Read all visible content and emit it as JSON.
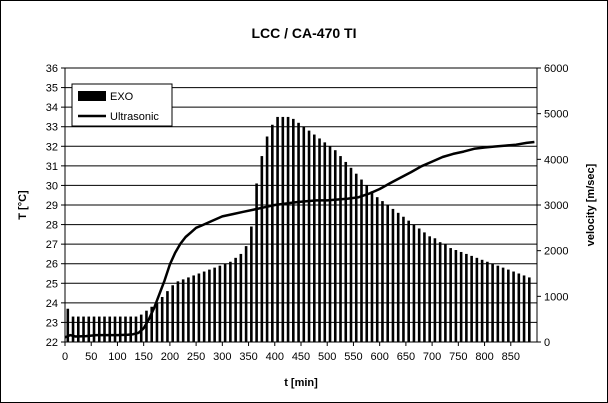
{
  "chart_data": {
    "type": "bar",
    "title": "LCC / CA-470 TI",
    "xlabel": "t [min]",
    "ylabel": "T [°C]",
    "y2label": "velocity [m/sec]",
    "xlim": [
      0,
      900
    ],
    "ylim": [
      22,
      36
    ],
    "y2lim": [
      0,
      6000
    ],
    "xticks": [
      "0",
      "50",
      "100",
      "150",
      "200",
      "250",
      "300",
      "350",
      "400",
      "450",
      "500",
      "550",
      "600",
      "650",
      "700",
      "750",
      "800",
      "850"
    ],
    "xtick_values": [
      0,
      50,
      100,
      150,
      200,
      250,
      300,
      350,
      400,
      450,
      500,
      550,
      600,
      650,
      700,
      750,
      800,
      850
    ],
    "yticks": [
      "22",
      "23",
      "24",
      "25",
      "26",
      "27",
      "28",
      "29",
      "30",
      "31",
      "32",
      "33",
      "34",
      "35",
      "36"
    ],
    "ytick_values": [
      22,
      23,
      24,
      25,
      26,
      27,
      28,
      29,
      30,
      31,
      32,
      33,
      34,
      35,
      36
    ],
    "y2ticks": [
      "0",
      "1000",
      "2000",
      "3000",
      "4000",
      "5000",
      "6000"
    ],
    "y2tick_values": [
      0,
      1000,
      2000,
      3000,
      4000,
      5000,
      6000
    ],
    "grid": "horizontal",
    "legend_position": "top-left",
    "series": [
      {
        "name": "EXO",
        "kind": "bar",
        "axis": "left",
        "color": "#000000",
        "x": [
          0,
          10,
          20,
          30,
          40,
          50,
          60,
          70,
          80,
          90,
          100,
          110,
          120,
          130,
          140,
          150,
          160,
          170,
          180,
          190,
          200,
          210,
          220,
          230,
          240,
          250,
          260,
          270,
          280,
          290,
          300,
          310,
          320,
          330,
          340,
          350,
          360,
          370,
          380,
          390,
          400,
          410,
          420,
          430,
          440,
          450,
          460,
          470,
          480,
          490,
          500,
          510,
          520,
          530,
          540,
          550,
          560,
          570,
          580,
          590,
          600,
          610,
          620,
          630,
          640,
          650,
          660,
          670,
          680,
          690,
          700,
          710,
          720,
          730,
          740,
          750,
          760,
          770,
          780,
          790,
          800,
          810,
          820,
          830,
          840,
          850,
          860,
          870,
          880
        ],
        "values": [
          23.7,
          23.3,
          23.3,
          23.3,
          23.3,
          23.3,
          23.3,
          23.3,
          23.3,
          23.3,
          23.3,
          23.3,
          23.3,
          23.3,
          23.4,
          23.6,
          23.8,
          24.0,
          24.3,
          24.6,
          24.9,
          25.1,
          25.2,
          25.3,
          25.4,
          25.5,
          25.6,
          25.7,
          25.8,
          25.9,
          26.0,
          26.1,
          26.3,
          26.5,
          26.9,
          27.9,
          30.1,
          31.5,
          32.5,
          33.1,
          33.5,
          33.5,
          33.5,
          33.4,
          33.2,
          33.0,
          32.8,
          32.6,
          32.4,
          32.2,
          32.0,
          31.8,
          31.5,
          31.2,
          30.9,
          30.6,
          30.3,
          30.0,
          29.7,
          29.4,
          29.2,
          29.0,
          28.8,
          28.6,
          28.4,
          28.2,
          28.0,
          27.8,
          27.6,
          27.4,
          27.3,
          27.1,
          27.0,
          26.8,
          26.7,
          26.6,
          26.5,
          26.4,
          26.3,
          26.2,
          26.1,
          26.0,
          25.9,
          25.8,
          25.7,
          25.6,
          25.5,
          25.4,
          25.3
        ]
      },
      {
        "name": "Ultrasonic",
        "kind": "line",
        "axis": "right",
        "color": "#000000",
        "x": [
          0,
          10,
          20,
          40,
          60,
          80,
          100,
          120,
          130,
          140,
          150,
          160,
          170,
          180,
          190,
          200,
          210,
          220,
          230,
          240,
          250,
          260,
          280,
          300,
          320,
          340,
          360,
          380,
          400,
          420,
          440,
          460,
          480,
          500,
          520,
          540,
          560,
          580,
          600,
          620,
          640,
          660,
          680,
          700,
          720,
          740,
          760,
          780,
          800,
          820,
          840,
          860,
          880,
          895
        ],
        "values": [
          100,
          150,
          120,
          130,
          150,
          150,
          150,
          160,
          170,
          200,
          300,
          500,
          750,
          1050,
          1350,
          1700,
          1950,
          2150,
          2300,
          2400,
          2500,
          2550,
          2650,
          2750,
          2800,
          2850,
          2900,
          2950,
          3000,
          3030,
          3060,
          3080,
          3100,
          3100,
          3120,
          3140,
          3170,
          3250,
          3350,
          3480,
          3600,
          3720,
          3850,
          3950,
          4050,
          4120,
          4170,
          4230,
          4260,
          4280,
          4300,
          4320,
          4360,
          4380
        ]
      }
    ]
  }
}
